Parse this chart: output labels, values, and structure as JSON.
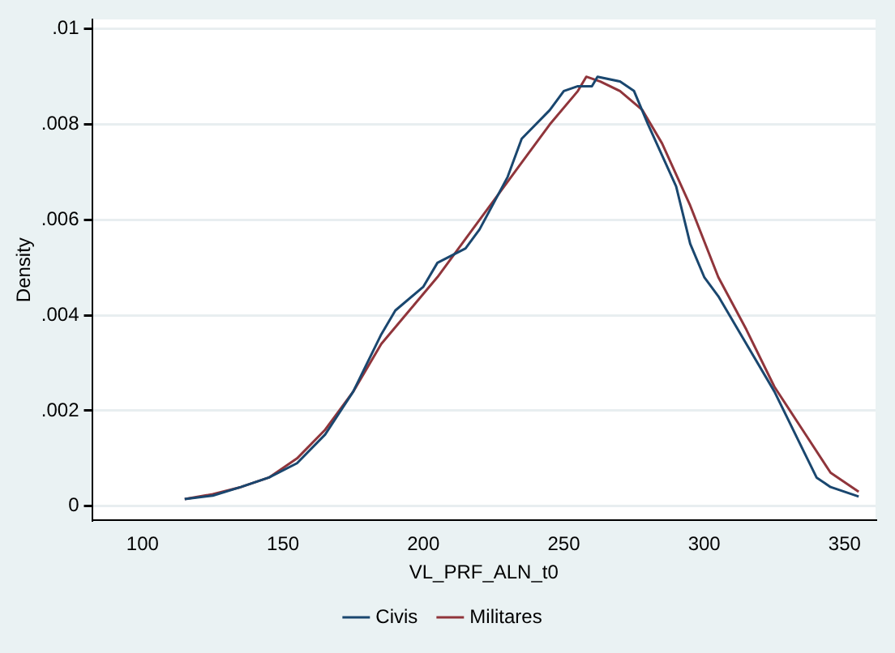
{
  "chart_data": {
    "type": "line",
    "xlabel": "VL_PRF_ALN_t0",
    "ylabel": "Density",
    "xlim": [
      82,
      361
    ],
    "xticks": [
      100,
      150,
      200,
      250,
      300,
      350
    ],
    "ylim": [
      -0.0003,
      0.0102
    ],
    "yticks": [
      {
        "value": 0,
        "label": "0"
      },
      {
        "value": 0.002,
        "label": ".002"
      },
      {
        "value": 0.004,
        "label": ".004"
      },
      {
        "value": 0.006,
        "label": ".006"
      },
      {
        "value": 0.008,
        "label": ".008"
      },
      {
        "value": 0.01,
        "label": ".01"
      }
    ],
    "grid": "y",
    "legend": "bottom",
    "marker": "none",
    "line_style": "solid",
    "series": [
      {
        "name": "Civis",
        "color": "#1a476f",
        "x": [
          115,
          125,
          135,
          145,
          155,
          165,
          175,
          185,
          190,
          200,
          205,
          215,
          220,
          230,
          235,
          245,
          250,
          255,
          260,
          262,
          270,
          275,
          280,
          290,
          295,
          300,
          305,
          315,
          325,
          335,
          340,
          345,
          355
        ],
        "values": [
          0.00015,
          0.00022,
          0.0004,
          0.0006,
          0.0009,
          0.0015,
          0.0024,
          0.0036,
          0.0041,
          0.0046,
          0.0051,
          0.0054,
          0.0058,
          0.0069,
          0.0077,
          0.0083,
          0.0087,
          0.0088,
          0.0088,
          0.009,
          0.0089,
          0.0087,
          0.008,
          0.0067,
          0.0055,
          0.0048,
          0.0044,
          0.0034,
          0.0024,
          0.0012,
          0.0006,
          0.0004,
          0.0002
        ]
      },
      {
        "name": "Militares",
        "color": "#90353b",
        "x": [
          115,
          125,
          135,
          145,
          155,
          165,
          175,
          185,
          195,
          205,
          215,
          225,
          235,
          245,
          255,
          258,
          263,
          270,
          278,
          285,
          295,
          305,
          315,
          325,
          335,
          345,
          355
        ],
        "values": [
          0.00015,
          0.00025,
          0.0004,
          0.0006,
          0.001,
          0.0016,
          0.0024,
          0.0034,
          0.0041,
          0.0048,
          0.0056,
          0.0064,
          0.0072,
          0.008,
          0.0087,
          0.009,
          0.0089,
          0.0087,
          0.0083,
          0.0076,
          0.0063,
          0.0048,
          0.0037,
          0.0025,
          0.0016,
          0.0007,
          0.0003
        ]
      }
    ]
  }
}
